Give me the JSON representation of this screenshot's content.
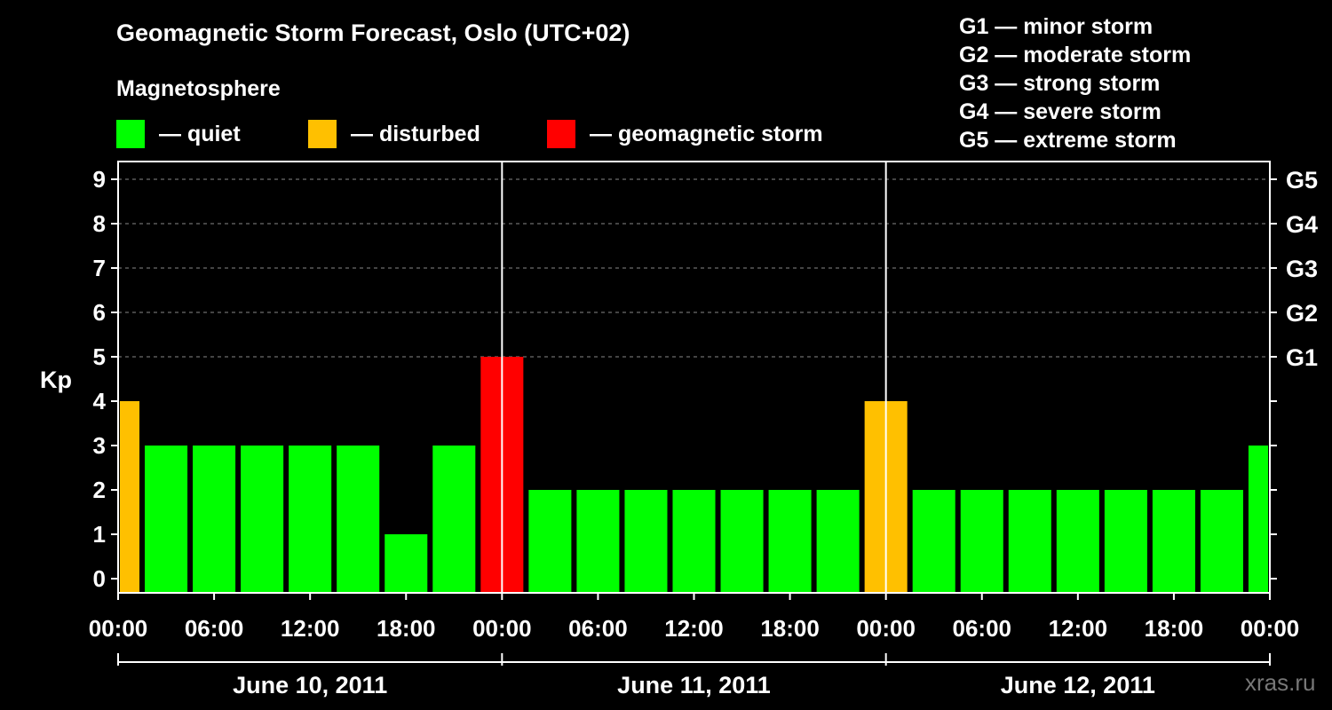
{
  "title": "Geomagnetic Storm Forecast, Oslo (UTC+02)",
  "magnetosphere": {
    "title": "Magnetosphere",
    "items": [
      {
        "label": "— quiet",
        "color": "#00ff00"
      },
      {
        "label": "— disturbed",
        "color": "#ffc000"
      },
      {
        "label": "— geomagnetic storm",
        "color": "#ff0000"
      }
    ]
  },
  "g_legend": [
    "G1 — minor storm",
    "G2 — moderate storm",
    "G3 — strong storm",
    "G4 — severe storm",
    "G5 — extreme storm"
  ],
  "watermark": "xras.ru",
  "chart_data": {
    "type": "bar",
    "ylabel": "Kp",
    "ylim": [
      0,
      9
    ],
    "y_ticks": [
      "0",
      "1",
      "2",
      "3",
      "4",
      "5",
      "6",
      "7",
      "8",
      "9"
    ],
    "right_ticks": [
      {
        "kp": 5,
        "label": "G1"
      },
      {
        "kp": 6,
        "label": "G2"
      },
      {
        "kp": 7,
        "label": "G3"
      },
      {
        "kp": 8,
        "label": "G4"
      },
      {
        "kp": 9,
        "label": "G5"
      }
    ],
    "x_ticks": [
      "00:00",
      "06:00",
      "12:00",
      "18:00",
      "00:00",
      "06:00",
      "12:00",
      "18:00",
      "00:00",
      "06:00",
      "12:00",
      "18:00",
      "00:00"
    ],
    "days": [
      "June 10, 2011",
      "June 11, 2011",
      "June 12, 2011"
    ],
    "hours_total": 72,
    "bars": [
      {
        "start_hour": 0,
        "end_hour": 1.5,
        "kp": 4,
        "status": "disturbed"
      },
      {
        "start_hour": 1.5,
        "end_hour": 4.5,
        "kp": 3,
        "status": "quiet"
      },
      {
        "start_hour": 4.5,
        "end_hour": 7.5,
        "kp": 3,
        "status": "quiet"
      },
      {
        "start_hour": 7.5,
        "end_hour": 10.5,
        "kp": 3,
        "status": "quiet"
      },
      {
        "start_hour": 10.5,
        "end_hour": 13.5,
        "kp": 3,
        "status": "quiet"
      },
      {
        "start_hour": 13.5,
        "end_hour": 16.5,
        "kp": 3,
        "status": "quiet"
      },
      {
        "start_hour": 16.5,
        "end_hour": 19.5,
        "kp": 1,
        "status": "quiet"
      },
      {
        "start_hour": 19.5,
        "end_hour": 22.5,
        "kp": 3,
        "status": "quiet"
      },
      {
        "start_hour": 22.5,
        "end_hour": 25.5,
        "kp": 5,
        "status": "storm"
      },
      {
        "start_hour": 25.5,
        "end_hour": 28.5,
        "kp": 2,
        "status": "quiet"
      },
      {
        "start_hour": 28.5,
        "end_hour": 31.5,
        "kp": 2,
        "status": "quiet"
      },
      {
        "start_hour": 31.5,
        "end_hour": 34.5,
        "kp": 2,
        "status": "quiet"
      },
      {
        "start_hour": 34.5,
        "end_hour": 37.5,
        "kp": 2,
        "status": "quiet"
      },
      {
        "start_hour": 37.5,
        "end_hour": 40.5,
        "kp": 2,
        "status": "quiet"
      },
      {
        "start_hour": 40.5,
        "end_hour": 43.5,
        "kp": 2,
        "status": "quiet"
      },
      {
        "start_hour": 43.5,
        "end_hour": 46.5,
        "kp": 2,
        "status": "quiet"
      },
      {
        "start_hour": 46.5,
        "end_hour": 49.5,
        "kp": 4,
        "status": "disturbed"
      },
      {
        "start_hour": 49.5,
        "end_hour": 52.5,
        "kp": 2,
        "status": "quiet"
      },
      {
        "start_hour": 52.5,
        "end_hour": 55.5,
        "kp": 2,
        "status": "quiet"
      },
      {
        "start_hour": 55.5,
        "end_hour": 58.5,
        "kp": 2,
        "status": "quiet"
      },
      {
        "start_hour": 58.5,
        "end_hour": 61.5,
        "kp": 2,
        "status": "quiet"
      },
      {
        "start_hour": 61.5,
        "end_hour": 64.5,
        "kp": 2,
        "status": "quiet"
      },
      {
        "start_hour": 64.5,
        "end_hour": 67.5,
        "kp": 2,
        "status": "quiet"
      },
      {
        "start_hour": 67.5,
        "end_hour": 70.5,
        "kp": 2,
        "status": "quiet"
      },
      {
        "start_hour": 70.5,
        "end_hour": 72,
        "kp": 3,
        "status": "quiet"
      }
    ],
    "colors": {
      "quiet": "#00ff00",
      "disturbed": "#ffc000",
      "storm": "#ff0000"
    }
  }
}
